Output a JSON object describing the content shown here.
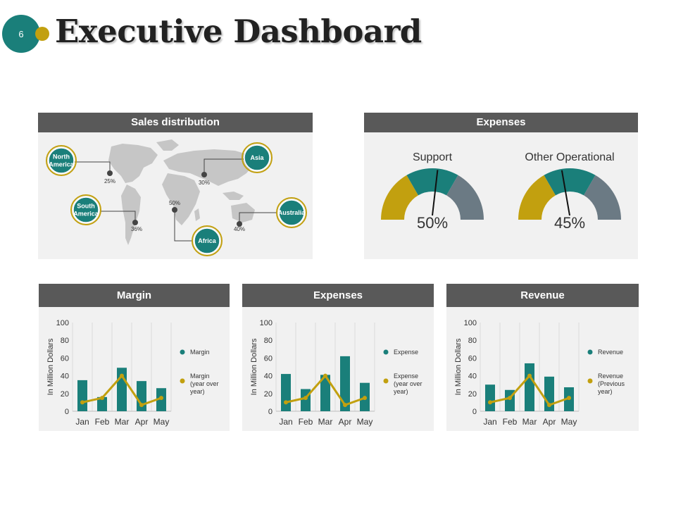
{
  "page": {
    "number": "6",
    "title": "Executive Dashboard"
  },
  "sales_distribution": {
    "title": "Sales distribution",
    "regions": [
      {
        "name_lines": [
          "North",
          "America"
        ],
        "value": "25%"
      },
      {
        "name_lines": [
          "Asia"
        ],
        "value": "30%"
      },
      {
        "name_lines": [
          "South",
          "America"
        ],
        "value": "36%"
      },
      {
        "name_lines": [
          "Africa"
        ],
        "value": "50%"
      },
      {
        "name_lines": [
          "Australia"
        ],
        "value": "40%"
      }
    ]
  },
  "expenses_gauges": {
    "title": "Expenses",
    "gauges": [
      {
        "label": "Support",
        "value_text": "50%",
        "value": 50
      },
      {
        "label": "Other Operational",
        "value_text": "45%",
        "value": 45
      }
    ]
  },
  "colors": {
    "teal": "#1a7f7a",
    "gold": "#c2a00f",
    "slate": "#6b7a84",
    "header": "#595959",
    "panel": "#f1f1f1"
  },
  "chart_data": [
    {
      "type": "bar",
      "title": "Margin",
      "categories": [
        "Jan",
        "Feb",
        "Mar",
        "Apr",
        "May"
      ],
      "ylabel": "In Million Dollars",
      "ylim": [
        0,
        100
      ],
      "yticks": [
        0,
        20,
        40,
        60,
        80,
        100
      ],
      "series": [
        {
          "name": "Margin",
          "kind": "bar",
          "values": [
            35,
            16,
            49,
            34,
            26
          ]
        },
        {
          "name": "Margin (year over year)",
          "name_lines": [
            "Margin",
            "(year over",
            "year)"
          ],
          "kind": "line",
          "values": [
            10,
            15,
            40,
            7,
            15
          ]
        }
      ]
    },
    {
      "type": "bar",
      "title": "Expenses",
      "categories": [
        "Jan",
        "Feb",
        "Mar",
        "Apr",
        "May"
      ],
      "ylabel": "In Million Dollars",
      "ylim": [
        0,
        100
      ],
      "yticks": [
        0,
        20,
        40,
        60,
        80,
        100
      ],
      "series": [
        {
          "name": "Expense",
          "kind": "bar",
          "values": [
            42,
            25,
            41,
            62,
            32
          ]
        },
        {
          "name": "Expense (year over year)",
          "name_lines": [
            "Expense",
            "(year over",
            "year)"
          ],
          "kind": "line",
          "values": [
            10,
            15,
            40,
            7,
            15
          ]
        }
      ]
    },
    {
      "type": "bar",
      "title": "Revenue",
      "categories": [
        "Jan",
        "Feb",
        "Mar",
        "Apr",
        "May"
      ],
      "ylabel": "In Million Dollars",
      "ylim": [
        0,
        100
      ],
      "yticks": [
        0,
        20,
        40,
        60,
        80,
        100
      ],
      "series": [
        {
          "name": "Revenue",
          "kind": "bar",
          "values": [
            30,
            24,
            54,
            39,
            27
          ]
        },
        {
          "name": "Revenue (Previous year)",
          "name_lines": [
            "Revenue",
            "(Previous",
            "year)"
          ],
          "kind": "line",
          "values": [
            10,
            15,
            40,
            7,
            15
          ]
        }
      ]
    }
  ]
}
